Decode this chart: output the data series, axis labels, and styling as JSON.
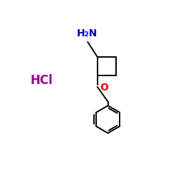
{
  "background_color": "#ffffff",
  "bond_color": "#000000",
  "nh2_color": "#0000cc",
  "o_color": "#ff0000",
  "hcl_color": "#990099",
  "hcl_text": "HCl",
  "nh2_text": "H₂N",
  "o_text": "O",
  "figsize": [
    2.5,
    2.5
  ],
  "dpi": 100,
  "lw": 1.4
}
